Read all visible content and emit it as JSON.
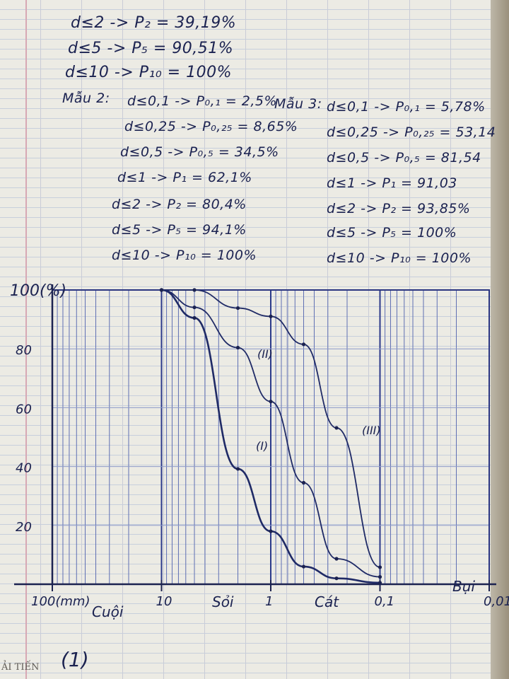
{
  "notes": {
    "line1": "d≤2 -> P₂ = 39,19%",
    "line2": "d≤5 -> P₅ = 90,51%",
    "line3": "d≤10 -> P₁₀ = 100%",
    "mau2_label": "Mẫu 2:",
    "mau2": [
      "d≤0,1 -> P₀,₁ = 2,5%",
      "d≤0,25 -> P₀,₂₅ = 8,65%",
      "d≤0,5 -> P₀,₅ = 34,5%",
      "d≤1 -> P₁ = 62,1%",
      "d≤2 -> P₂ = 80,4%",
      "d≤5 -> P₅ = 94,1%",
      "d≤10 -> P₁₀ = 100%"
    ],
    "mau3_label": "Mẫu 3:",
    "mau3": [
      "d≤0,1 -> P₀,₁ = 5,78%",
      "d≤0,25 -> P₀,₂₅ = 53,14",
      "d≤0,5 -> P₀,₅ = 81,54",
      "d≤1 -> P₁ = 91,03",
      "d≤2 -> P₂ = 93,85%",
      "d≤5 -> P₅ = 100%",
      "d≤10 -> P₁₀ = 100%"
    ]
  },
  "chart_data": {
    "type": "line",
    "xscale": "log",
    "xdirection": "decreasing",
    "xlim": [
      100,
      0.01
    ],
    "ylim": [
      0,
      100
    ],
    "grid": true,
    "ylabel": "100(%)",
    "yticks": [
      "80",
      "60",
      "40",
      "20"
    ],
    "xticks": [
      {
        "value": 100,
        "label": "100(mm)"
      },
      {
        "value": 10,
        "label": "10"
      },
      {
        "value": 1,
        "label": "1"
      },
      {
        "value": 0.1,
        "label": "0,1"
      },
      {
        "value": 0.01,
        "label": "0,01"
      }
    ],
    "zones": [
      "Cuội",
      "Sỏi",
      "Cát",
      "Bụi"
    ],
    "series": [
      {
        "name": "(I)",
        "x": [
          10,
          5,
          2,
          1,
          0.5,
          0.25,
          0.1
        ],
        "y": [
          100,
          90.51,
          39.19,
          18,
          6,
          2,
          0.5
        ]
      },
      {
        "name": "(II)",
        "x": [
          10,
          5,
          2,
          1,
          0.5,
          0.25,
          0.1
        ],
        "y": [
          100,
          94.1,
          80.4,
          62.1,
          34.5,
          8.65,
          2.5
        ]
      },
      {
        "name": "(III)",
        "x": [
          10,
          5,
          2,
          1,
          0.5,
          0.25,
          0.1
        ],
        "y": [
          100,
          100,
          93.85,
          91.03,
          81.54,
          53.14,
          5.78
        ]
      }
    ]
  },
  "figure_label": "(1)",
  "brand": "ẢI TIẾN"
}
